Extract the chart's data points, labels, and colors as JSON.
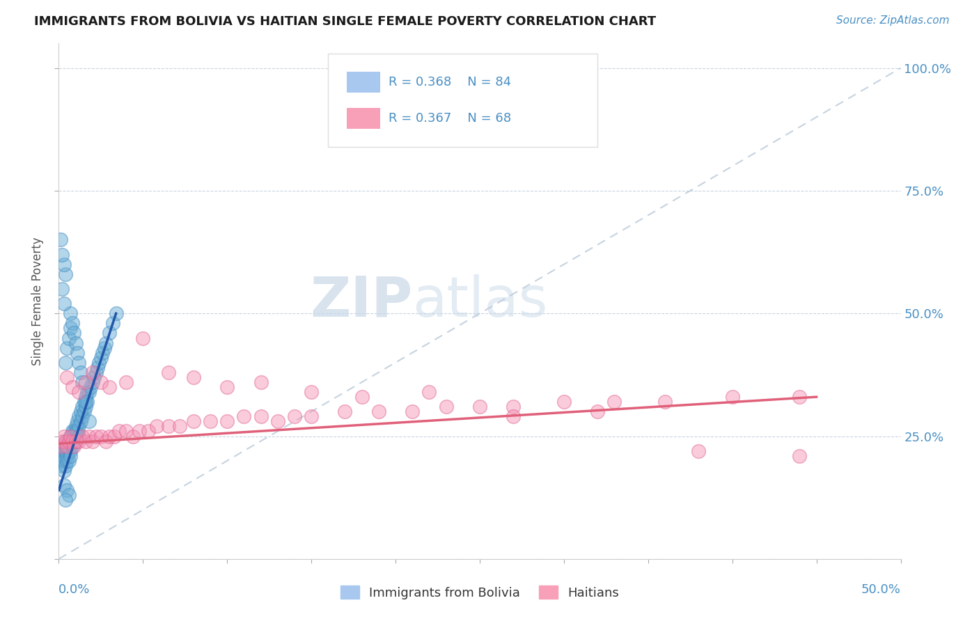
{
  "title": "IMMIGRANTS FROM BOLIVIA VS HAITIAN SINGLE FEMALE POVERTY CORRELATION CHART",
  "source": "Source: ZipAtlas.com",
  "ylabel": "Single Female Poverty",
  "xlim": [
    0.0,
    0.5
  ],
  "ylim": [
    0.0,
    1.05
  ],
  "bolivia_color": "#6aaed6",
  "bolivia_edge_color": "#4a90c4",
  "haitian_color": "#f48fb1",
  "haitian_edge_color": "#e06090",
  "bolivia_line_color": "#2255aa",
  "haitian_line_color": "#e0607a",
  "diag_line_color": "#b8c8d8",
  "watermark_zip": "ZIP",
  "watermark_atlas": "atlas",
  "bolivia_scatter_x": [
    0.001,
    0.002,
    0.002,
    0.002,
    0.003,
    0.003,
    0.003,
    0.003,
    0.004,
    0.004,
    0.004,
    0.005,
    0.005,
    0.005,
    0.005,
    0.006,
    0.006,
    0.006,
    0.007,
    0.007,
    0.007,
    0.007,
    0.008,
    0.008,
    0.008,
    0.009,
    0.009,
    0.009,
    0.01,
    0.01,
    0.01,
    0.011,
    0.011,
    0.012,
    0.012,
    0.012,
    0.013,
    0.013,
    0.014,
    0.014,
    0.015,
    0.015,
    0.016,
    0.016,
    0.017,
    0.017,
    0.018,
    0.019,
    0.02,
    0.021,
    0.022,
    0.023,
    0.024,
    0.025,
    0.026,
    0.027,
    0.028,
    0.03,
    0.032,
    0.034,
    0.004,
    0.005,
    0.006,
    0.007,
    0.007,
    0.008,
    0.009,
    0.01,
    0.011,
    0.012,
    0.013,
    0.014,
    0.016,
    0.018,
    0.002,
    0.003,
    0.004,
    0.003,
    0.002,
    0.001,
    0.003,
    0.005,
    0.006,
    0.004
  ],
  "bolivia_scatter_y": [
    0.21,
    0.22,
    0.2,
    0.19,
    0.22,
    0.21,
    0.2,
    0.18,
    0.23,
    0.22,
    0.19,
    0.24,
    0.22,
    0.21,
    0.2,
    0.23,
    0.22,
    0.2,
    0.25,
    0.24,
    0.22,
    0.21,
    0.26,
    0.25,
    0.23,
    0.26,
    0.25,
    0.24,
    0.27,
    0.26,
    0.24,
    0.28,
    0.26,
    0.29,
    0.27,
    0.25,
    0.3,
    0.28,
    0.31,
    0.29,
    0.32,
    0.3,
    0.33,
    0.31,
    0.34,
    0.32,
    0.34,
    0.35,
    0.36,
    0.37,
    0.38,
    0.39,
    0.4,
    0.41,
    0.42,
    0.43,
    0.44,
    0.46,
    0.48,
    0.5,
    0.4,
    0.43,
    0.45,
    0.47,
    0.5,
    0.48,
    0.46,
    0.44,
    0.42,
    0.4,
    0.38,
    0.36,
    0.32,
    0.28,
    0.55,
    0.52,
    0.58,
    0.6,
    0.62,
    0.65,
    0.15,
    0.14,
    0.13,
    0.12
  ],
  "haitian_scatter_x": [
    0.001,
    0.002,
    0.003,
    0.004,
    0.005,
    0.006,
    0.007,
    0.008,
    0.009,
    0.01,
    0.012,
    0.014,
    0.016,
    0.018,
    0.02,
    0.022,
    0.025,
    0.028,
    0.03,
    0.033,
    0.036,
    0.04,
    0.044,
    0.048,
    0.053,
    0.058,
    0.065,
    0.072,
    0.08,
    0.09,
    0.1,
    0.11,
    0.12,
    0.13,
    0.14,
    0.15,
    0.17,
    0.19,
    0.21,
    0.23,
    0.25,
    0.27,
    0.3,
    0.33,
    0.36,
    0.4,
    0.44,
    0.005,
    0.008,
    0.012,
    0.016,
    0.02,
    0.025,
    0.03,
    0.04,
    0.05,
    0.065,
    0.08,
    0.1,
    0.12,
    0.15,
    0.18,
    0.22,
    0.27,
    0.32,
    0.38,
    0.44
  ],
  "haitian_scatter_y": [
    0.23,
    0.24,
    0.25,
    0.24,
    0.23,
    0.24,
    0.25,
    0.24,
    0.23,
    0.24,
    0.24,
    0.25,
    0.24,
    0.25,
    0.24,
    0.25,
    0.25,
    0.24,
    0.25,
    0.25,
    0.26,
    0.26,
    0.25,
    0.26,
    0.26,
    0.27,
    0.27,
    0.27,
    0.28,
    0.28,
    0.28,
    0.29,
    0.29,
    0.28,
    0.29,
    0.29,
    0.3,
    0.3,
    0.3,
    0.31,
    0.31,
    0.31,
    0.32,
    0.32,
    0.32,
    0.33,
    0.33,
    0.37,
    0.35,
    0.34,
    0.36,
    0.38,
    0.36,
    0.35,
    0.36,
    0.45,
    0.38,
    0.37,
    0.35,
    0.36,
    0.34,
    0.33,
    0.34,
    0.29,
    0.3,
    0.22,
    0.21
  ]
}
